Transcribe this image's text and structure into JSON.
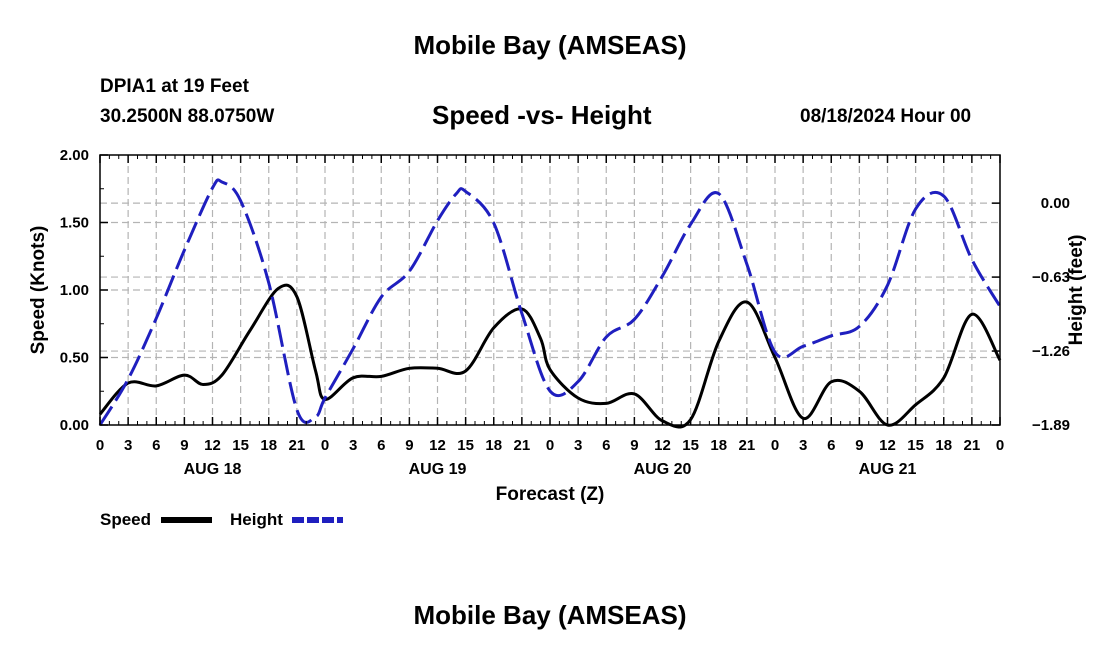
{
  "header": {
    "title": "Mobile Bay (AMSEAS)",
    "station": "DPIA1 at 19 Feet",
    "coordinates": "30.2500N 88.0750W",
    "datetime": "08/18/2024 Hour 00"
  },
  "footer": {
    "title": "Mobile Bay (AMSEAS)"
  },
  "chart_data": {
    "type": "line",
    "title": "Speed -vs- Height",
    "xlabel": "Forecast (Z)",
    "ylabel": "Speed (Knots)",
    "y2label": "Height (feet)",
    "x_range": [
      0,
      96
    ],
    "ylim": [
      0,
      2.0
    ],
    "y2lim": [
      -1.89,
      0.41
    ],
    "grid": true,
    "legend_position": "bottom-left",
    "x_ticks": [
      {
        "x": 0,
        "label": "0"
      },
      {
        "x": 3,
        "label": "3"
      },
      {
        "x": 6,
        "label": "6"
      },
      {
        "x": 9,
        "label": "9"
      },
      {
        "x": 12,
        "label": "12"
      },
      {
        "x": 15,
        "label": "15"
      },
      {
        "x": 18,
        "label": "18"
      },
      {
        "x": 21,
        "label": "21"
      },
      {
        "x": 24,
        "label": "0"
      },
      {
        "x": 27,
        "label": "3"
      },
      {
        "x": 30,
        "label": "6"
      },
      {
        "x": 33,
        "label": "9"
      },
      {
        "x": 36,
        "label": "12"
      },
      {
        "x": 39,
        "label": "15"
      },
      {
        "x": 42,
        "label": "18"
      },
      {
        "x": 45,
        "label": "21"
      },
      {
        "x": 48,
        "label": "0"
      },
      {
        "x": 51,
        "label": "3"
      },
      {
        "x": 54,
        "label": "6"
      },
      {
        "x": 57,
        "label": "9"
      },
      {
        "x": 60,
        "label": "12"
      },
      {
        "x": 63,
        "label": "15"
      },
      {
        "x": 66,
        "label": "18"
      },
      {
        "x": 69,
        "label": "21"
      },
      {
        "x": 72,
        "label": "0"
      },
      {
        "x": 75,
        "label": "3"
      },
      {
        "x": 78,
        "label": "6"
      },
      {
        "x": 81,
        "label": "9"
      },
      {
        "x": 84,
        "label": "12"
      },
      {
        "x": 87,
        "label": "15"
      },
      {
        "x": 90,
        "label": "18"
      },
      {
        "x": 93,
        "label": "21"
      },
      {
        "x": 96,
        "label": "0"
      }
    ],
    "day_labels": [
      {
        "x": 12,
        "label": "AUG 18"
      },
      {
        "x": 36,
        "label": "AUG 19"
      },
      {
        "x": 60,
        "label": "AUG 20"
      },
      {
        "x": 84,
        "label": "AUG 21"
      }
    ],
    "y_ticks": [
      {
        "value": 0.0,
        "label": "0.00"
      },
      {
        "value": 0.5,
        "label": "0.50"
      },
      {
        "value": 1.0,
        "label": "1.00"
      },
      {
        "value": 1.5,
        "label": "1.50"
      },
      {
        "value": 2.0,
        "label": "2.00"
      }
    ],
    "y2_ticks": [
      {
        "value": 0.0,
        "label": "0.00"
      },
      {
        "value": -0.63,
        "label": "−0.63"
      },
      {
        "value": -1.26,
        "label": "−1.26"
      },
      {
        "value": -1.89,
        "label": "−1.89"
      }
    ],
    "series": [
      {
        "name": "Speed",
        "axis": "left",
        "color": "#000000",
        "dash": "solid",
        "x": [
          0,
          3,
          6,
          9,
          11,
          13,
          16,
          19,
          21,
          23,
          24,
          27,
          30,
          33,
          36,
          39,
          42,
          45,
          47,
          48,
          51,
          54,
          57,
          60,
          63,
          66,
          69,
          72,
          75,
          78,
          81,
          84,
          87,
          90,
          93,
          96
        ],
        "values": [
          0.08,
          0.31,
          0.29,
          0.37,
          0.3,
          0.37,
          0.7,
          1.01,
          0.95,
          0.4,
          0.19,
          0.35,
          0.36,
          0.42,
          0.42,
          0.4,
          0.72,
          0.86,
          0.64,
          0.41,
          0.2,
          0.16,
          0.23,
          0.03,
          0.04,
          0.62,
          0.91,
          0.5,
          0.05,
          0.32,
          0.25,
          0.0,
          0.15,
          0.35,
          0.82,
          0.48
        ]
      },
      {
        "name": "Height",
        "axis": "right",
        "color": "#1f1fbf",
        "dash": "dashed",
        "x": [
          0,
          3,
          6,
          9,
          12,
          13,
          15,
          18,
          21,
          23,
          24,
          27,
          30,
          33,
          36,
          38,
          39,
          42,
          45,
          48,
          51,
          54,
          57,
          60,
          63,
          66,
          69,
          72,
          75,
          78,
          81,
          84,
          87,
          90,
          93,
          96
        ],
        "values": [
          -1.89,
          -1.5,
          -0.98,
          -0.4,
          0.13,
          0.18,
          0.02,
          -0.68,
          -1.76,
          -1.82,
          -1.66,
          -1.24,
          -0.8,
          -0.58,
          -0.15,
          0.08,
          0.1,
          -0.17,
          -0.94,
          -1.6,
          -1.52,
          -1.14,
          -0.99,
          -0.62,
          -0.18,
          0.08,
          -0.52,
          -1.27,
          -1.22,
          -1.13,
          -1.05,
          -0.7,
          -0.05,
          0.06,
          -0.48,
          -0.88
        ]
      }
    ]
  }
}
